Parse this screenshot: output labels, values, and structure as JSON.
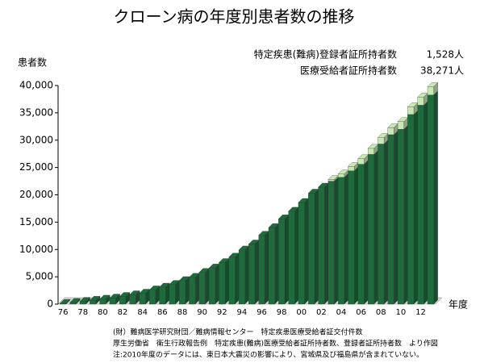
{
  "chart_data": {
    "type": "bar",
    "stacked": true,
    "title": "クローン病の年度別患者数の推移",
    "y_label": "患者数",
    "x_label": "年度",
    "categories": [
      "76",
      null,
      "78",
      null,
      "80",
      null,
      "82",
      null,
      "84",
      null,
      "86",
      null,
      "88",
      null,
      "90",
      null,
      "92",
      null,
      "94",
      null,
      "96",
      null,
      "98",
      null,
      "00",
      null,
      "02",
      null,
      "04",
      null,
      "06",
      null,
      "08",
      null,
      "10",
      null,
      "12",
      null
    ],
    "series": [
      {
        "name": "医療受給者証所持者数",
        "latest_label": "38,271人",
        "color": "#1f6b3d",
        "values": [
          128,
          300,
          500,
          700,
          900,
          1100,
          1400,
          1700,
          2000,
          2600,
          3100,
          3600,
          4300,
          4900,
          5800,
          6600,
          7600,
          8600,
          9900,
          11000,
          12600,
          14000,
          15600,
          17000,
          18600,
          20300,
          21400,
          22500,
          23200,
          24400,
          25600,
          27400,
          29300,
          31000,
          32000,
          34700,
          36400,
          38271
        ]
      },
      {
        "name": "特定疾患(難病)登録者証所持者数",
        "latest_label": "1,528人",
        "color": "#c9e8b4",
        "values": [
          null,
          null,
          null,
          null,
          null,
          null,
          null,
          null,
          null,
          null,
          null,
          null,
          null,
          null,
          null,
          null,
          null,
          null,
          null,
          null,
          null,
          null,
          null,
          null,
          null,
          null,
          null,
          300,
          600,
          800,
          1000,
          1100,
          1200,
          1300,
          1400,
          1400,
          1500,
          1528
        ]
      }
    ],
    "ylim": [
      0,
      40000
    ],
    "yticks": [
      0,
      {
        "value": 5000,
        "label": "5,000"
      },
      {
        "value": 10000,
        "label": "10,000"
      },
      {
        "value": 15000,
        "label": "15,000"
      },
      {
        "value": 20000,
        "label": "20,000"
      },
      {
        "value": 25000,
        "label": "25,000"
      },
      {
        "value": 30000,
        "label": "30,000"
      },
      {
        "value": 35000,
        "label": "35,000"
      },
      {
        "value": 40000,
        "label": "40,000"
      }
    ],
    "notes": [
      "(財）難病医学研究財団／難病情報センター　特定疾患医療受給者証交付件数",
      "厚生労働省　衛生行政報告例　特定疾患(難病)医療受給者証所持者数、登録者証所持者数　より作図",
      "注:2010年度のデータには、東日本大震災の影響により、宮城県及び福島県が含まれていない。"
    ]
  }
}
